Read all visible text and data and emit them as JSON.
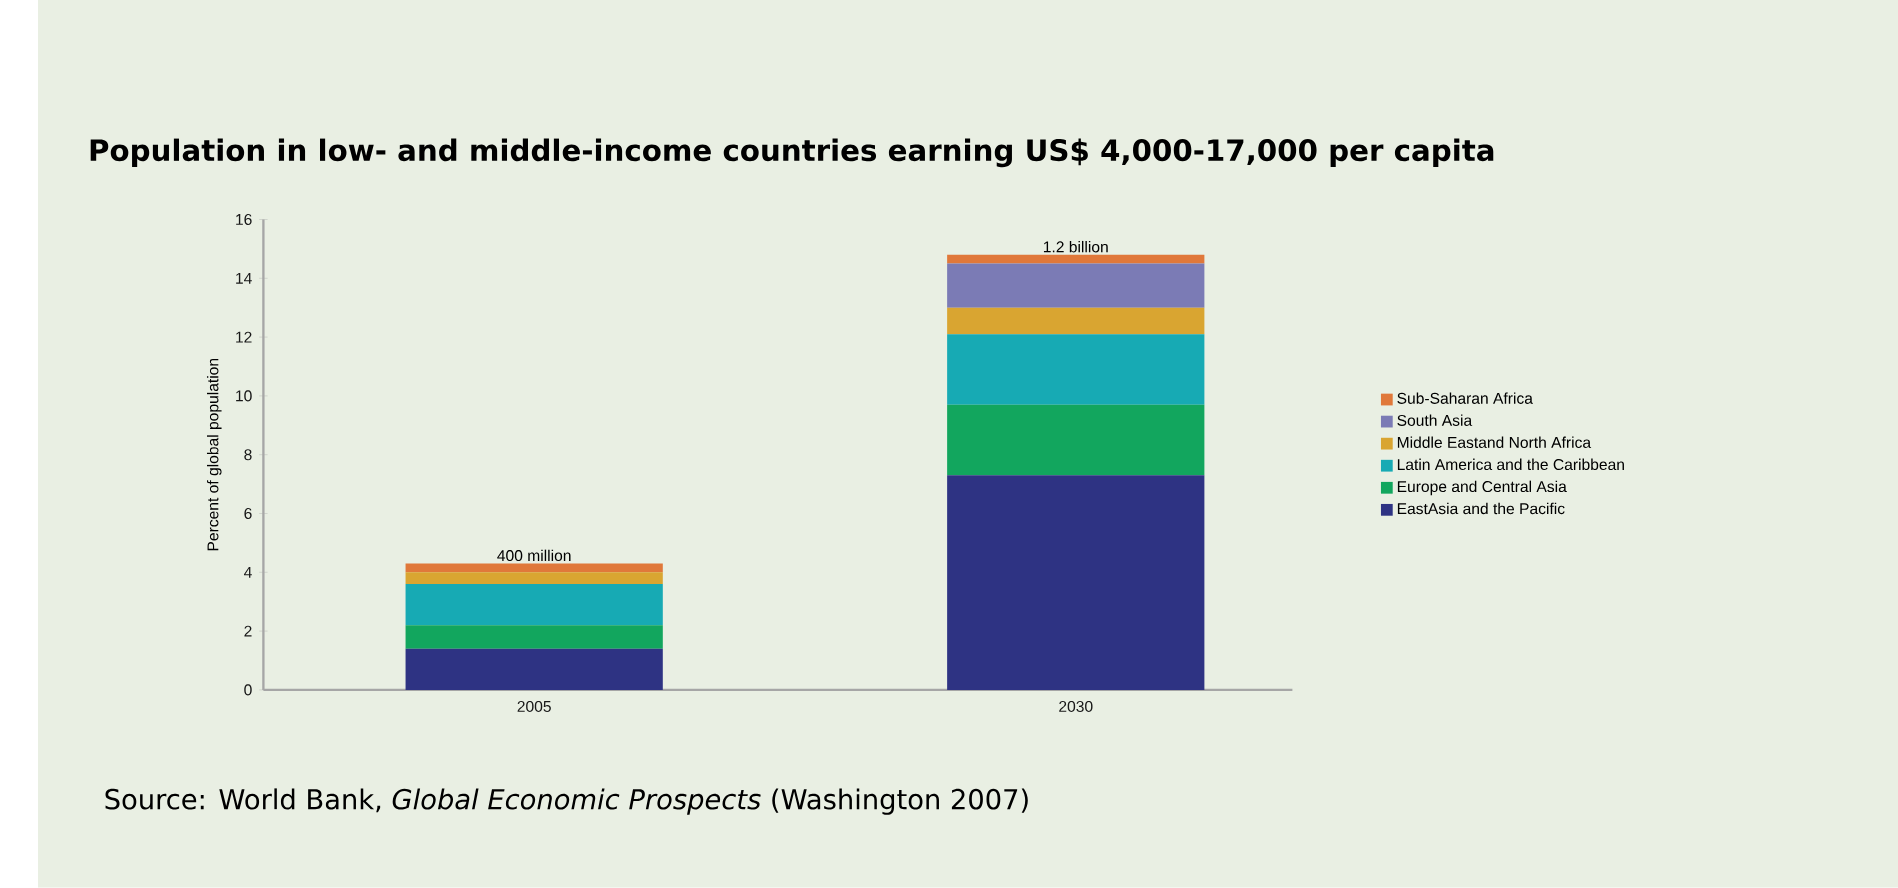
{
  "chart_data": {
    "type": "bar",
    "stacked": true,
    "title": "Population in low- and middle-income countries earning US$ 4,000-17,000 per capita",
    "ylabel": "Percent of global population",
    "categories": [
      "2005",
      "2030"
    ],
    "series": [
      {
        "name": "EastAsia and the Pacific",
        "color": "#2e3383",
        "values": [
          1.4,
          7.3
        ]
      },
      {
        "name": "Europe and Central Asia",
        "color": "#12a65e",
        "values": [
          0.8,
          2.4
        ]
      },
      {
        "name": "Latin America and the Caribbean",
        "color": "#17aab4",
        "values": [
          1.4,
          2.4
        ]
      },
      {
        "name": "Middle Eastand North Africa",
        "color": "#d9a531",
        "values": [
          0.4,
          0.9
        ]
      },
      {
        "name": "South Asia",
        "color": "#7b7bb5",
        "values": [
          0,
          1.5
        ]
      },
      {
        "name": "Sub-Saharan Africa",
        "color": "#e0783a",
        "values": [
          0.3,
          0.3
        ]
      }
    ],
    "ylim": [
      0,
      16
    ],
    "yticks": [
      0,
      2,
      4,
      6,
      8,
      10,
      12,
      14,
      16
    ],
    "grid": false,
    "legend": "right",
    "annotations": [
      {
        "text": "400 million",
        "x": "2005",
        "y": 4.3
      },
      {
        "text": "1.2 billion",
        "x": "2030",
        "y": 14.8
      },
      "Source: World Bank, *Global Economic Prospects* (Washington 2007)"
    ]
  }
}
